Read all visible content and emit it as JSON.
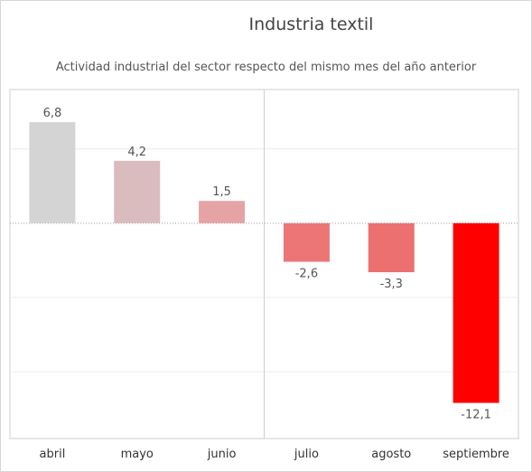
{
  "chart_data": {
    "type": "bar",
    "title": "Industria textil",
    "subtitle": "Actividad industrial del sector respecto del mismo mes del año anterior",
    "categories": [
      "abril",
      "mayo",
      "junio",
      "julio",
      "agosto",
      "septiembre"
    ],
    "values": [
      6.8,
      4.2,
      1.5,
      -2.6,
      -3.3,
      -12.1
    ],
    "data_labels": [
      "6,8",
      "4,2",
      "1,5",
      "-2,6",
      "-3,3",
      "-12,1"
    ],
    "colors": [
      "#d4d4d4",
      "#dbbcbe",
      "#e5a3a6",
      "#ec7576",
      "#ec7070",
      "#ff0000"
    ],
    "ylim": [
      -14.5,
      9
    ],
    "grid": true,
    "zero_line": "dotted",
    "divider_after_category": "junio"
  }
}
